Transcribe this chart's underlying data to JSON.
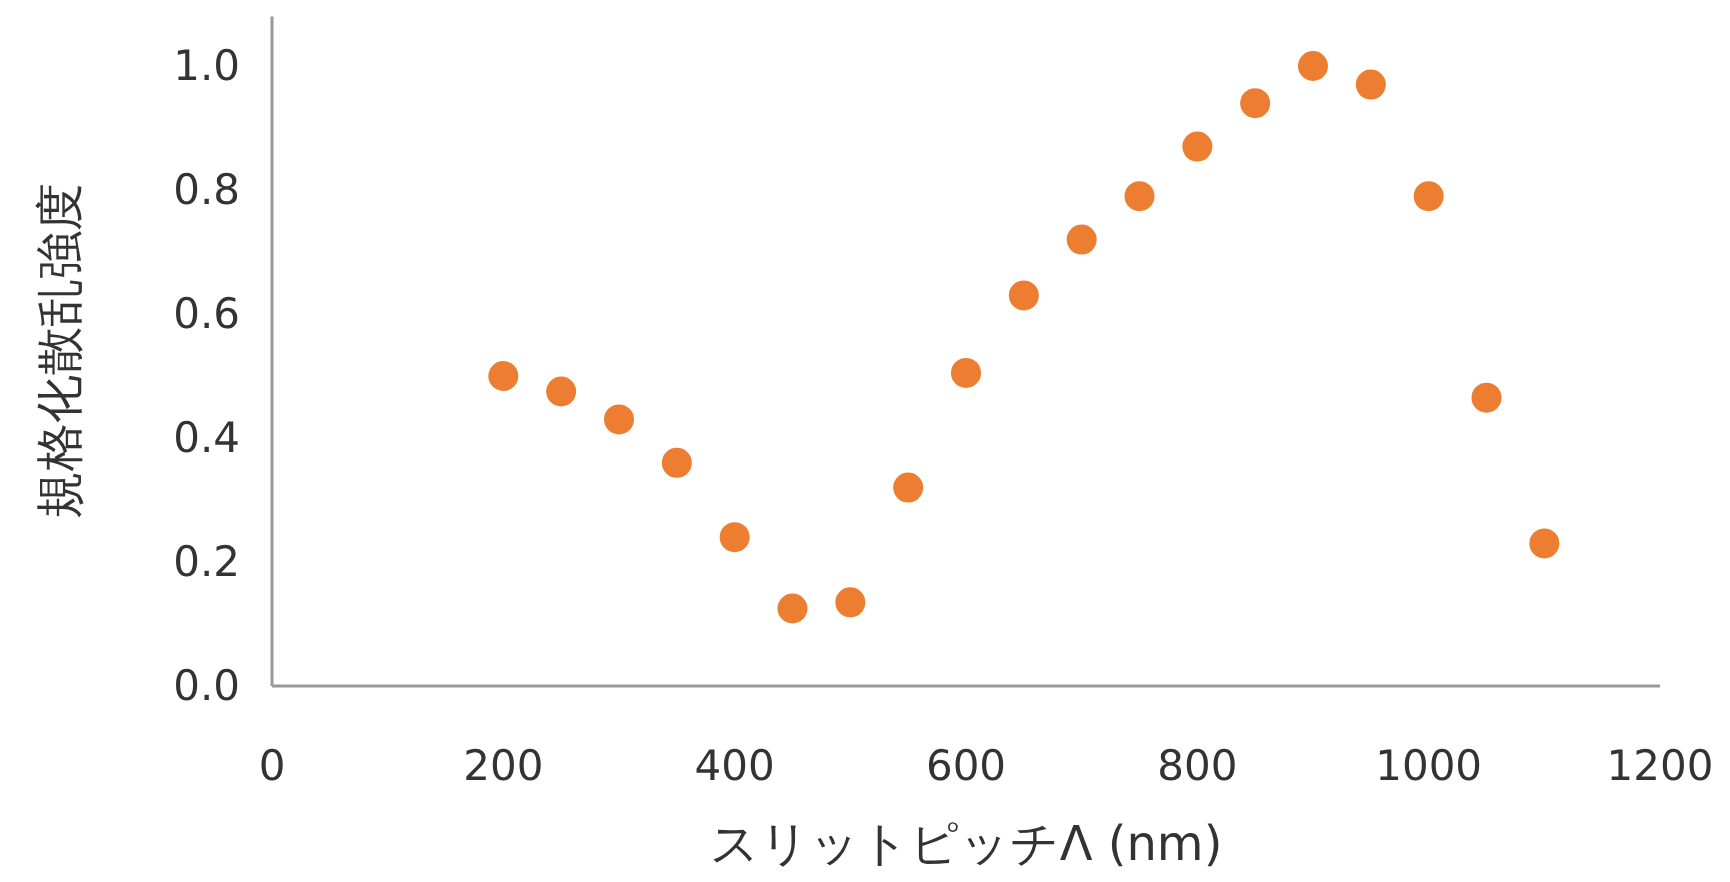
{
  "chart_data": {
    "type": "scatter",
    "xlabel": "スリットピッチΛ (nm)",
    "ylabel": "規格化散乱強度",
    "x": [
      200,
      250,
      300,
      350,
      400,
      450,
      500,
      550,
      600,
      650,
      700,
      750,
      800,
      850,
      900,
      950,
      1000,
      1050,
      1100
    ],
    "series": [
      {
        "color": "#ed7d31",
        "values": [
          0.5,
          0.475,
          0.43,
          0.36,
          0.24,
          0.125,
          0.135,
          0.32,
          0.505,
          0.63,
          0.72,
          0.79,
          0.87,
          0.94,
          1.0,
          0.97,
          0.79,
          0.465,
          0.23
        ]
      }
    ],
    "marker": "circle",
    "grid": false,
    "xlim": [
      0,
      1200
    ],
    "xticks": [
      0,
      200,
      400,
      600,
      800,
      1000,
      1200
    ],
    "ylim": [
      0,
      1.08
    ],
    "yticks": [
      {
        "value": 0,
        "label": "0.0"
      },
      {
        "value": 0.2,
        "label": "0.2"
      },
      {
        "value": 0.4,
        "label": "0.4"
      },
      {
        "value": 0.6,
        "label": "0.6"
      },
      {
        "value": 0.8,
        "label": "0.8"
      },
      {
        "value": 1,
        "label": "1.0"
      }
    ]
  }
}
